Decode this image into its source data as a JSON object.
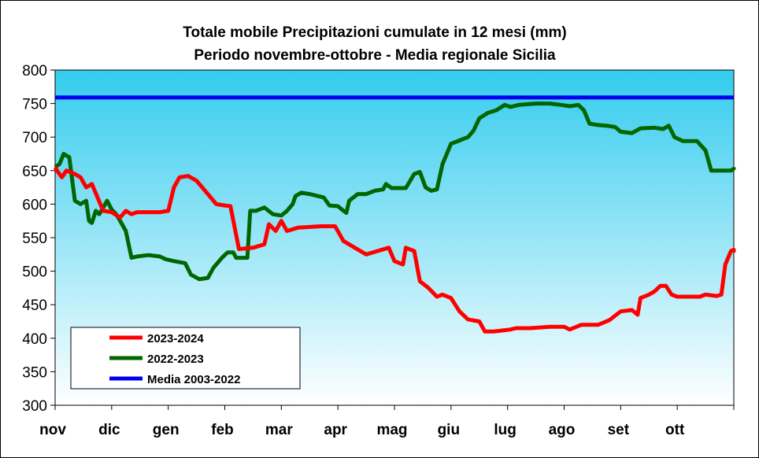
{
  "chart_data": {
    "type": "line",
    "title": "Totale mobile Precipitazioni cumulate in 12 mesi (mm)",
    "subtitle": "Periodo novembre-ottobre  - Media regionale Sicilia",
    "ylim": [
      300,
      800
    ],
    "yticks": [
      "300",
      "350",
      "400",
      "450",
      "500",
      "550",
      "600",
      "650",
      "700",
      "750",
      "800"
    ],
    "categories": [
      "nov",
      "dic",
      "gen",
      "feb",
      "mar",
      "apr",
      "mag",
      "giu",
      "lug",
      "ago",
      "set",
      "ott"
    ],
    "grid": false,
    "legend": "bottom-left",
    "colors": {
      "bg_top": "#33ccee",
      "bg_bottom": "#ffffff"
    },
    "series": [
      {
        "name": "2023-2024",
        "color": "#ff0000",
        "points": [
          [
            0,
            655
          ],
          [
            0.05,
            648
          ],
          [
            0.12,
            640
          ],
          [
            0.2,
            650
          ],
          [
            0.35,
            645
          ],
          [
            0.45,
            640
          ],
          [
            0.55,
            625
          ],
          [
            0.65,
            630
          ],
          [
            0.75,
            610
          ],
          [
            0.85,
            590
          ],
          [
            1.0,
            588
          ],
          [
            1.15,
            580
          ],
          [
            1.25,
            590
          ],
          [
            1.35,
            585
          ],
          [
            1.45,
            588
          ],
          [
            1.6,
            588
          ],
          [
            1.85,
            588
          ],
          [
            2.0,
            590
          ],
          [
            2.1,
            625
          ],
          [
            2.2,
            640
          ],
          [
            2.35,
            642
          ],
          [
            2.5,
            635
          ],
          [
            2.7,
            615
          ],
          [
            2.85,
            600
          ],
          [
            3.0,
            598
          ],
          [
            3.1,
            597
          ],
          [
            3.25,
            533
          ],
          [
            3.5,
            535
          ],
          [
            3.7,
            540
          ],
          [
            3.78,
            570
          ],
          [
            3.9,
            560
          ],
          [
            4.0,
            575
          ],
          [
            4.1,
            560
          ],
          [
            4.3,
            565
          ],
          [
            4.7,
            567
          ],
          [
            4.95,
            567
          ],
          [
            5.1,
            545
          ],
          [
            5.3,
            535
          ],
          [
            5.5,
            525
          ],
          [
            5.7,
            530
          ],
          [
            5.9,
            535
          ],
          [
            6.0,
            515
          ],
          [
            6.15,
            510
          ],
          [
            6.2,
            535
          ],
          [
            6.35,
            530
          ],
          [
            6.45,
            485
          ],
          [
            6.6,
            475
          ],
          [
            6.75,
            462
          ],
          [
            6.85,
            465
          ],
          [
            7.0,
            460
          ],
          [
            7.15,
            440
          ],
          [
            7.3,
            428
          ],
          [
            7.5,
            425
          ],
          [
            7.6,
            410
          ],
          [
            7.75,
            410
          ],
          [
            7.95,
            412
          ],
          [
            8.05,
            413
          ],
          [
            8.15,
            415
          ],
          [
            8.4,
            415
          ],
          [
            8.75,
            417
          ],
          [
            9.0,
            417
          ],
          [
            9.1,
            413
          ],
          [
            9.3,
            420
          ],
          [
            9.6,
            420
          ],
          [
            9.8,
            427
          ],
          [
            10.0,
            440
          ],
          [
            10.2,
            442
          ],
          [
            10.3,
            435
          ],
          [
            10.35,
            460
          ],
          [
            10.5,
            465
          ],
          [
            10.6,
            470
          ],
          [
            10.7,
            478
          ],
          [
            10.8,
            478
          ],
          [
            10.9,
            465
          ],
          [
            11.0,
            462
          ],
          [
            11.4,
            462
          ],
          [
            11.5,
            465
          ],
          [
            11.7,
            463
          ],
          [
            11.78,
            465
          ],
          [
            11.85,
            510
          ],
          [
            11.95,
            530
          ],
          [
            12.1,
            532
          ],
          [
            12.2,
            530
          ],
          [
            12.3,
            528
          ]
        ]
      },
      {
        "name": "2022-2023",
        "color": "#006600",
        "points": [
          [
            0,
            655
          ],
          [
            0.08,
            660
          ],
          [
            0.15,
            675
          ],
          [
            0.25,
            670
          ],
          [
            0.35,
            605
          ],
          [
            0.45,
            600
          ],
          [
            0.55,
            605
          ],
          [
            0.6,
            575
          ],
          [
            0.65,
            572
          ],
          [
            0.72,
            590
          ],
          [
            0.78,
            585
          ],
          [
            0.85,
            595
          ],
          [
            0.92,
            605
          ],
          [
            1.0,
            592
          ],
          [
            1.08,
            585
          ],
          [
            1.15,
            575
          ],
          [
            1.25,
            560
          ],
          [
            1.35,
            520
          ],
          [
            1.45,
            522
          ],
          [
            1.65,
            524
          ],
          [
            1.85,
            522
          ],
          [
            1.95,
            518
          ],
          [
            2.1,
            515
          ],
          [
            2.3,
            512
          ],
          [
            2.4,
            495
          ],
          [
            2.55,
            488
          ],
          [
            2.7,
            490
          ],
          [
            2.8,
            505
          ],
          [
            2.95,
            520
          ],
          [
            3.05,
            528
          ],
          [
            3.15,
            528
          ],
          [
            3.2,
            520
          ],
          [
            3.4,
            520
          ],
          [
            3.45,
            590
          ],
          [
            3.55,
            590
          ],
          [
            3.7,
            595
          ],
          [
            3.85,
            585
          ],
          [
            4.0,
            583
          ],
          [
            4.1,
            590
          ],
          [
            4.2,
            600
          ],
          [
            4.25,
            612
          ],
          [
            4.35,
            617
          ],
          [
            4.5,
            615
          ],
          [
            4.75,
            610
          ],
          [
            4.85,
            598
          ],
          [
            5.0,
            597
          ],
          [
            5.1,
            590
          ],
          [
            5.15,
            587
          ],
          [
            5.2,
            605
          ],
          [
            5.35,
            615
          ],
          [
            5.5,
            615
          ],
          [
            5.65,
            620
          ],
          [
            5.8,
            622
          ],
          [
            5.85,
            630
          ],
          [
            5.95,
            624
          ],
          [
            6.2,
            624
          ],
          [
            6.35,
            645
          ],
          [
            6.45,
            648
          ],
          [
            6.55,
            625
          ],
          [
            6.65,
            620
          ],
          [
            6.75,
            622
          ],
          [
            6.85,
            660
          ],
          [
            6.9,
            670
          ],
          [
            7.0,
            690
          ],
          [
            7.15,
            695
          ],
          [
            7.3,
            700
          ],
          [
            7.4,
            710
          ],
          [
            7.5,
            728
          ],
          [
            7.65,
            736
          ],
          [
            7.8,
            740
          ],
          [
            7.95,
            748
          ],
          [
            8.05,
            745
          ],
          [
            8.2,
            748
          ],
          [
            8.5,
            750
          ],
          [
            8.75,
            750
          ],
          [
            8.95,
            748
          ],
          [
            9.1,
            746
          ],
          [
            9.25,
            748
          ],
          [
            9.35,
            740
          ],
          [
            9.45,
            720
          ],
          [
            9.6,
            718
          ],
          [
            9.75,
            717
          ],
          [
            9.9,
            715
          ],
          [
            10.0,
            708
          ],
          [
            10.2,
            706
          ],
          [
            10.35,
            713
          ],
          [
            10.6,
            714
          ],
          [
            10.75,
            712
          ],
          [
            10.85,
            717
          ],
          [
            10.95,
            700
          ],
          [
            11.1,
            694
          ],
          [
            11.35,
            694
          ],
          [
            11.5,
            680
          ],
          [
            11.6,
            650
          ],
          [
            11.75,
            650
          ],
          [
            11.95,
            650
          ],
          [
            12.15,
            653
          ],
          [
            12.3,
            655
          ]
        ]
      },
      {
        "name": "Media 2003-2022",
        "color": "#0000ee",
        "points": [
          [
            0,
            759
          ],
          [
            12.3,
            759
          ]
        ]
      }
    ]
  }
}
